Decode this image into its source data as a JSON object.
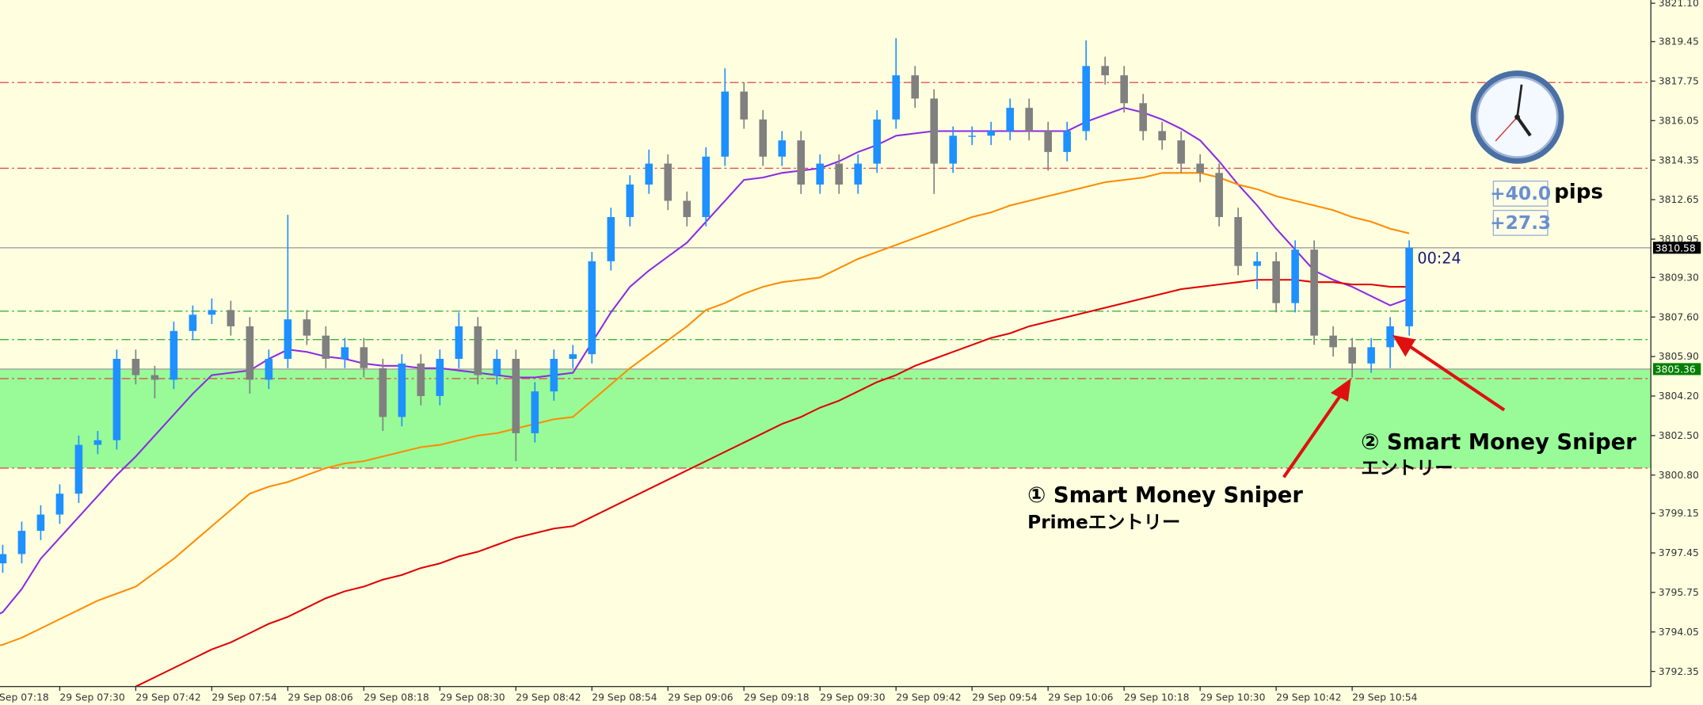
{
  "chart_data": {
    "type": "candlestick",
    "categories": [
      "29 Sep 07:18",
      null,
      null,
      null,
      "29 Sep 07:30",
      null,
      null,
      null,
      "29 Sep 07:42",
      null,
      null,
      null,
      "29 Sep 07:54",
      null,
      null,
      null,
      "29 Sep 08:06",
      null,
      null,
      null,
      "29 Sep 08:18",
      null,
      null,
      null,
      "29 Sep 08:30",
      null,
      null,
      null,
      "29 Sep 08:42",
      null,
      null,
      null,
      "29 Sep 08:54",
      null,
      null,
      null,
      "29 Sep 09:06",
      null,
      null,
      null,
      "29 Sep 09:18",
      null,
      null,
      null,
      "29 Sep 09:30",
      null,
      null,
      null,
      "29 Sep 09:42",
      null,
      null,
      null,
      "29 Sep 09:54",
      null,
      null,
      null,
      "29 Sep 10:06",
      null,
      null,
      null,
      "29 Sep 10:18",
      null,
      null,
      null,
      "29 Sep 10:30",
      null,
      null,
      null,
      "29 Sep 10:42",
      null,
      null,
      null,
      "29 Sep 10:54",
      null,
      null,
      null
    ],
    "open": [
      3796.5,
      3797.0,
      3797.4,
      3798.4,
      3799.1,
      3800.0,
      3802.1,
      3802.3,
      3805.8,
      3805.1,
      3804.9,
      3807.0,
      3807.7,
      3807.9,
      3807.2,
      3804.9,
      3805.8,
      3807.5,
      3806.8,
      3805.8,
      3806.3,
      3805.4,
      3803.3,
      3805.6,
      3804.2,
      3805.8,
      3807.2,
      3805.1,
      3805.8,
      3802.6,
      3804.4,
      3805.8,
      3806.0,
      3810.0,
      3811.9,
      3813.3,
      3814.2,
      3812.6,
      3811.9,
      3814.5,
      3817.3,
      3816.1,
      3814.5,
      3815.2,
      3813.3,
      3814.2,
      3813.3,
      3814.2,
      3816.1,
      3818.0,
      3817.0,
      3814.2,
      3815.4,
      3815.4,
      3815.6,
      3816.6,
      3815.6,
      3814.7,
      3815.6,
      3818.4,
      3818.0,
      3816.8,
      3815.6,
      3815.2,
      3814.2,
      3813.8,
      3811.9,
      3809.8,
      3810.0,
      3808.2,
      3810.5,
      3806.8,
      3806.3,
      3805.6,
      3806.3,
      3807.2
    ],
    "high": [
      3797.4,
      3797.8,
      3798.8,
      3799.5,
      3800.4,
      3802.5,
      3802.7,
      3806.2,
      3806.2,
      3805.5,
      3807.4,
      3808.1,
      3808.4,
      3808.3,
      3807.6,
      3806.2,
      3812.0,
      3807.9,
      3807.2,
      3806.7,
      3806.7,
      3805.8,
      3806.0,
      3806.0,
      3806.2,
      3807.8,
      3807.6,
      3806.2,
      3806.2,
      3804.8,
      3806.2,
      3806.4,
      3810.4,
      3812.3,
      3813.7,
      3814.8,
      3814.6,
      3813.0,
      3814.9,
      3818.3,
      3817.7,
      3816.5,
      3815.6,
      3815.6,
      3814.6,
      3814.6,
      3814.6,
      3816.5,
      3819.6,
      3818.4,
      3817.4,
      3815.8,
      3815.8,
      3816.0,
      3817.0,
      3817.0,
      3816.0,
      3816.0,
      3819.5,
      3818.8,
      3818.4,
      3817.2,
      3816.0,
      3815.6,
      3814.6,
      3814.2,
      3812.3,
      3810.4,
      3810.4,
      3810.9,
      3810.9,
      3807.2,
      3806.7,
      3806.7,
      3807.6,
      3810.9
    ],
    "low": [
      3796.1,
      3796.6,
      3797.0,
      3798.0,
      3798.7,
      3799.6,
      3801.7,
      3801.9,
      3804.7,
      3804.1,
      3804.5,
      3806.6,
      3807.3,
      3806.8,
      3804.3,
      3804.5,
      3805.4,
      3806.4,
      3805.4,
      3805.4,
      3805.0,
      3802.7,
      3802.9,
      3803.8,
      3803.8,
      3805.4,
      3804.7,
      3804.7,
      3801.4,
      3802.2,
      3804.0,
      3805.4,
      3805.6,
      3809.6,
      3811.5,
      3812.9,
      3812.2,
      3811.5,
      3811.5,
      3814.1,
      3815.7,
      3814.1,
      3814.1,
      3812.9,
      3812.9,
      3812.9,
      3812.9,
      3813.8,
      3815.7,
      3816.6,
      3812.9,
      3813.8,
      3815.0,
      3815.0,
      3815.2,
      3815.2,
      3813.9,
      3814.3,
      3815.2,
      3817.6,
      3816.4,
      3815.2,
      3814.8,
      3813.8,
      3813.4,
      3811.5,
      3809.4,
      3808.8,
      3807.8,
      3807.8,
      3806.4,
      3805.9,
      3805.0,
      3805.2,
      3805.4,
      3806.8
    ],
    "close": [
      3797.0,
      3797.4,
      3798.4,
      3799.1,
      3800.0,
      3802.1,
      3802.3,
      3805.8,
      3805.1,
      3804.9,
      3807.0,
      3807.7,
      3807.9,
      3807.2,
      3804.9,
      3805.8,
      3807.5,
      3806.8,
      3805.8,
      3806.3,
      3805.4,
      3803.3,
      3805.6,
      3804.2,
      3805.8,
      3807.2,
      3805.1,
      3805.8,
      3802.6,
      3804.4,
      3805.8,
      3806.0,
      3810.0,
      3811.9,
      3813.3,
      3814.2,
      3812.6,
      3811.9,
      3814.5,
      3817.3,
      3816.1,
      3814.5,
      3815.2,
      3813.3,
      3814.2,
      3813.3,
      3814.2,
      3816.1,
      3818.0,
      3817.0,
      3814.2,
      3815.4,
      3815.4,
      3815.6,
      3816.6,
      3815.6,
      3814.7,
      3815.6,
      3818.4,
      3818.0,
      3816.8,
      3815.6,
      3815.2,
      3814.2,
      3813.8,
      3811.9,
      3809.8,
      3810.0,
      3808.2,
      3810.5,
      3806.8,
      3806.3,
      3805.6,
      3806.3,
      3807.2,
      3810.58
    ],
    "up_color": "#1e90ff",
    "down_color": "#808080",
    "series": [
      {
        "color": "#8a2be2",
        "values": [
          3794.5,
          3794.9,
          3795.9,
          3797.2,
          3798.1,
          3799.0,
          3799.9,
          3800.8,
          3801.6,
          3802.5,
          3803.4,
          3804.3,
          3805.1,
          3805.2,
          3805.3,
          3805.8,
          3806.2,
          3806.1,
          3805.9,
          3805.8,
          3805.6,
          3805.5,
          3805.5,
          3805.4,
          3805.4,
          3805.3,
          3805.2,
          3805.1,
          3805.0,
          3805.0,
          3805.1,
          3805.2,
          3806.5,
          3807.8,
          3808.9,
          3809.6,
          3810.2,
          3810.8,
          3811.7,
          3812.6,
          3813.5,
          3813.6,
          3813.8,
          3813.9,
          3814.0,
          3814.3,
          3814.7,
          3815.0,
          3815.4,
          3815.5,
          3815.6,
          3815.6,
          3815.6,
          3815.6,
          3815.6,
          3815.6,
          3815.6,
          3815.6,
          3816.0,
          3816.3,
          3816.6,
          3816.4,
          3816.1,
          3815.7,
          3815.2,
          3814.3,
          3813.3,
          3812.4,
          3811.4,
          3810.5,
          3809.6,
          3809.2,
          3808.9,
          3808.5,
          3808.1,
          3808.4
        ]
      },
      {
        "color": "#ff8c00",
        "values": [
          3793.3,
          3793.5,
          3793.8,
          3794.2,
          3794.6,
          3795.0,
          3795.4,
          3795.7,
          3796.0,
          3796.6,
          3797.2,
          3797.9,
          3798.6,
          3799.3,
          3800.0,
          3800.3,
          3800.5,
          3800.8,
          3801.1,
          3801.3,
          3801.4,
          3801.6,
          3801.8,
          3802.0,
          3802.1,
          3802.3,
          3802.5,
          3802.6,
          3802.8,
          3803.0,
          3803.2,
          3803.3,
          3804.0,
          3804.7,
          3805.4,
          3806.0,
          3806.6,
          3807.2,
          3807.9,
          3808.2,
          3808.6,
          3808.9,
          3809.1,
          3809.2,
          3809.3,
          3809.7,
          3810.1,
          3810.4,
          3810.7,
          3811.0,
          3811.3,
          3811.6,
          3811.9,
          3812.1,
          3812.4,
          3812.6,
          3812.8,
          3813.0,
          3813.2,
          3813.4,
          3813.5,
          3813.6,
          3813.8,
          3813.8,
          3813.8,
          3813.6,
          3813.3,
          3813.1,
          3812.8,
          3812.6,
          3812.4,
          3812.2,
          3811.9,
          3811.7,
          3811.4,
          3811.2
        ]
      },
      {
        "color": "#e00000",
        "values": [
          null,
          null,
          null,
          null,
          null,
          null,
          null,
          null,
          3791.7,
          3792.1,
          3792.5,
          3792.9,
          3793.3,
          3793.6,
          3794.0,
          3794.4,
          3794.7,
          3795.1,
          3795.5,
          3795.8,
          3796.0,
          3796.3,
          3796.5,
          3796.8,
          3797.0,
          3797.3,
          3797.5,
          3797.8,
          3798.1,
          3798.3,
          3798.5,
          3798.6,
          3799.0,
          3799.4,
          3799.8,
          3800.2,
          3800.6,
          3801.0,
          3801.4,
          3801.8,
          3802.2,
          3802.6,
          3803.0,
          3803.3,
          3803.7,
          3804.0,
          3804.4,
          3804.8,
          3805.1,
          3805.5,
          3805.8,
          3806.1,
          3806.4,
          3806.7,
          3806.9,
          3807.2,
          3807.4,
          3807.6,
          3807.8,
          3808.0,
          3808.2,
          3808.4,
          3808.6,
          3808.8,
          3808.9,
          3809.0,
          3809.1,
          3809.2,
          3809.2,
          3809.2,
          3809.1,
          3809.1,
          3809.0,
          3809.0,
          3808.9,
          3808.9
        ]
      }
    ],
    "ylim": [
      3791.7,
      3821.24
    ],
    "yticks": [
      {
        "value": 3821.1,
        "label": "3821.10"
      },
      3819.45,
      3817.75,
      3816.05,
      3814.35,
      3812.65,
      3810.95,
      {
        "value": 3809.3,
        "label": "3809.30"
      },
      {
        "value": 3807.6,
        "label": "3807.60"
      },
      {
        "value": 3805.9,
        "label": "3805.90"
      },
      {
        "value": 3804.2,
        "label": "3804.20"
      },
      {
        "value": 3802.5,
        "label": "3802.50"
      },
      {
        "value": 3800.8,
        "label": "3800.80"
      },
      3799.15,
      3797.45,
      3795.75,
      3794.05,
      3792.35
    ],
    "levels": [
      {
        "value": 3817.69,
        "color": "#e05050"
      },
      {
        "value": 3814.0,
        "color": "#e05050"
      },
      {
        "value": 3807.85,
        "color": "#40b040"
      },
      {
        "value": 3806.63,
        "color": "#40b040"
      },
      {
        "value": 3804.95,
        "color": "#e05050"
      },
      {
        "value": 3801.1,
        "color": "#e05050"
      }
    ],
    "zone": {
      "top": 3805.36,
      "bottom": 3801.1,
      "color": "#98fb98"
    },
    "price_tags": [
      {
        "value": 3810.58,
        "color": "#000000",
        "line_color": "#a0a0a0"
      },
      {
        "value": 3805.36,
        "color": "#008000",
        "line_color": "#a0a0a0"
      }
    ],
    "timer": "00:24",
    "pips": [
      "+40.0",
      "+27.3"
    ],
    "pips_unit": "pips",
    "annotations": [
      {
        "title": "① Smart Money Sniper",
        "subtitle": "Primeエントリー"
      },
      {
        "title": "② Smart Money Sniper",
        "subtitle": "エントリー"
      }
    ]
  }
}
